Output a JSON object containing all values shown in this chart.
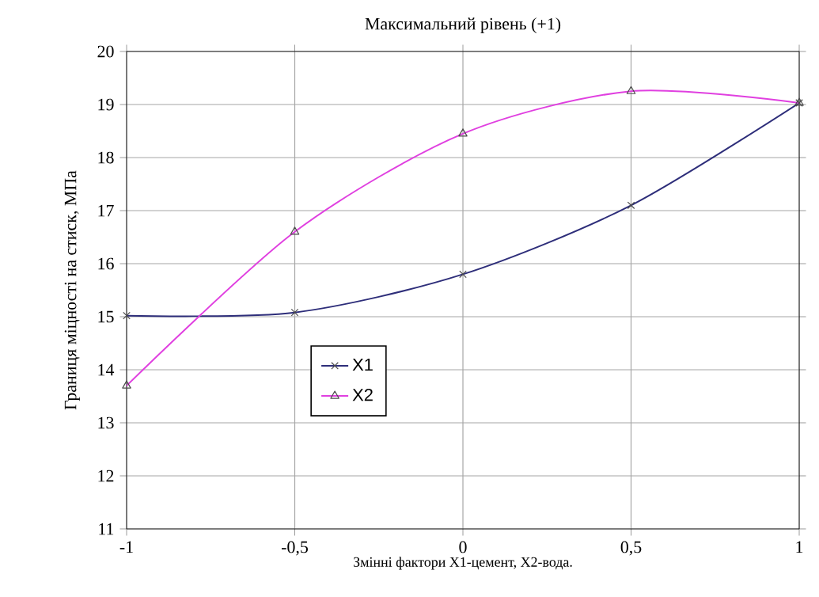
{
  "chart_data": {
    "type": "line",
    "title": "Максимальний рівень (+1)",
    "xlabel": "Змінні фактори  X1-цемент, X2-вода.",
    "ylabel": "Границя міцності на стиск, МПа",
    "x": [
      -1,
      -0.5,
      0,
      0.5,
      1
    ],
    "series": [
      {
        "name": "X1",
        "color": "#2e2e7a",
        "marker": "cross",
        "values": [
          15.02,
          15.08,
          15.8,
          17.1,
          19.03
        ]
      },
      {
        "name": "X2",
        "color": "#e040e0",
        "marker": "triangle",
        "values": [
          13.7,
          16.6,
          18.45,
          19.25,
          19.03
        ]
      }
    ],
    "xlim": [
      -1,
      1
    ],
    "ylim": [
      11,
      20
    ],
    "xticks": [
      {
        "value": -1,
        "label": "-1"
      },
      {
        "value": -0.5,
        "label": "-0,5"
      },
      {
        "value": 0,
        "label": "0"
      },
      {
        "value": 0.5,
        "label": "0,5"
      },
      {
        "value": 1,
        "label": "1"
      }
    ],
    "yticks": [
      11,
      12,
      13,
      14,
      15,
      16,
      17,
      18,
      19,
      20
    ],
    "grid": true,
    "legend": "center",
    "line_style": "solid"
  }
}
